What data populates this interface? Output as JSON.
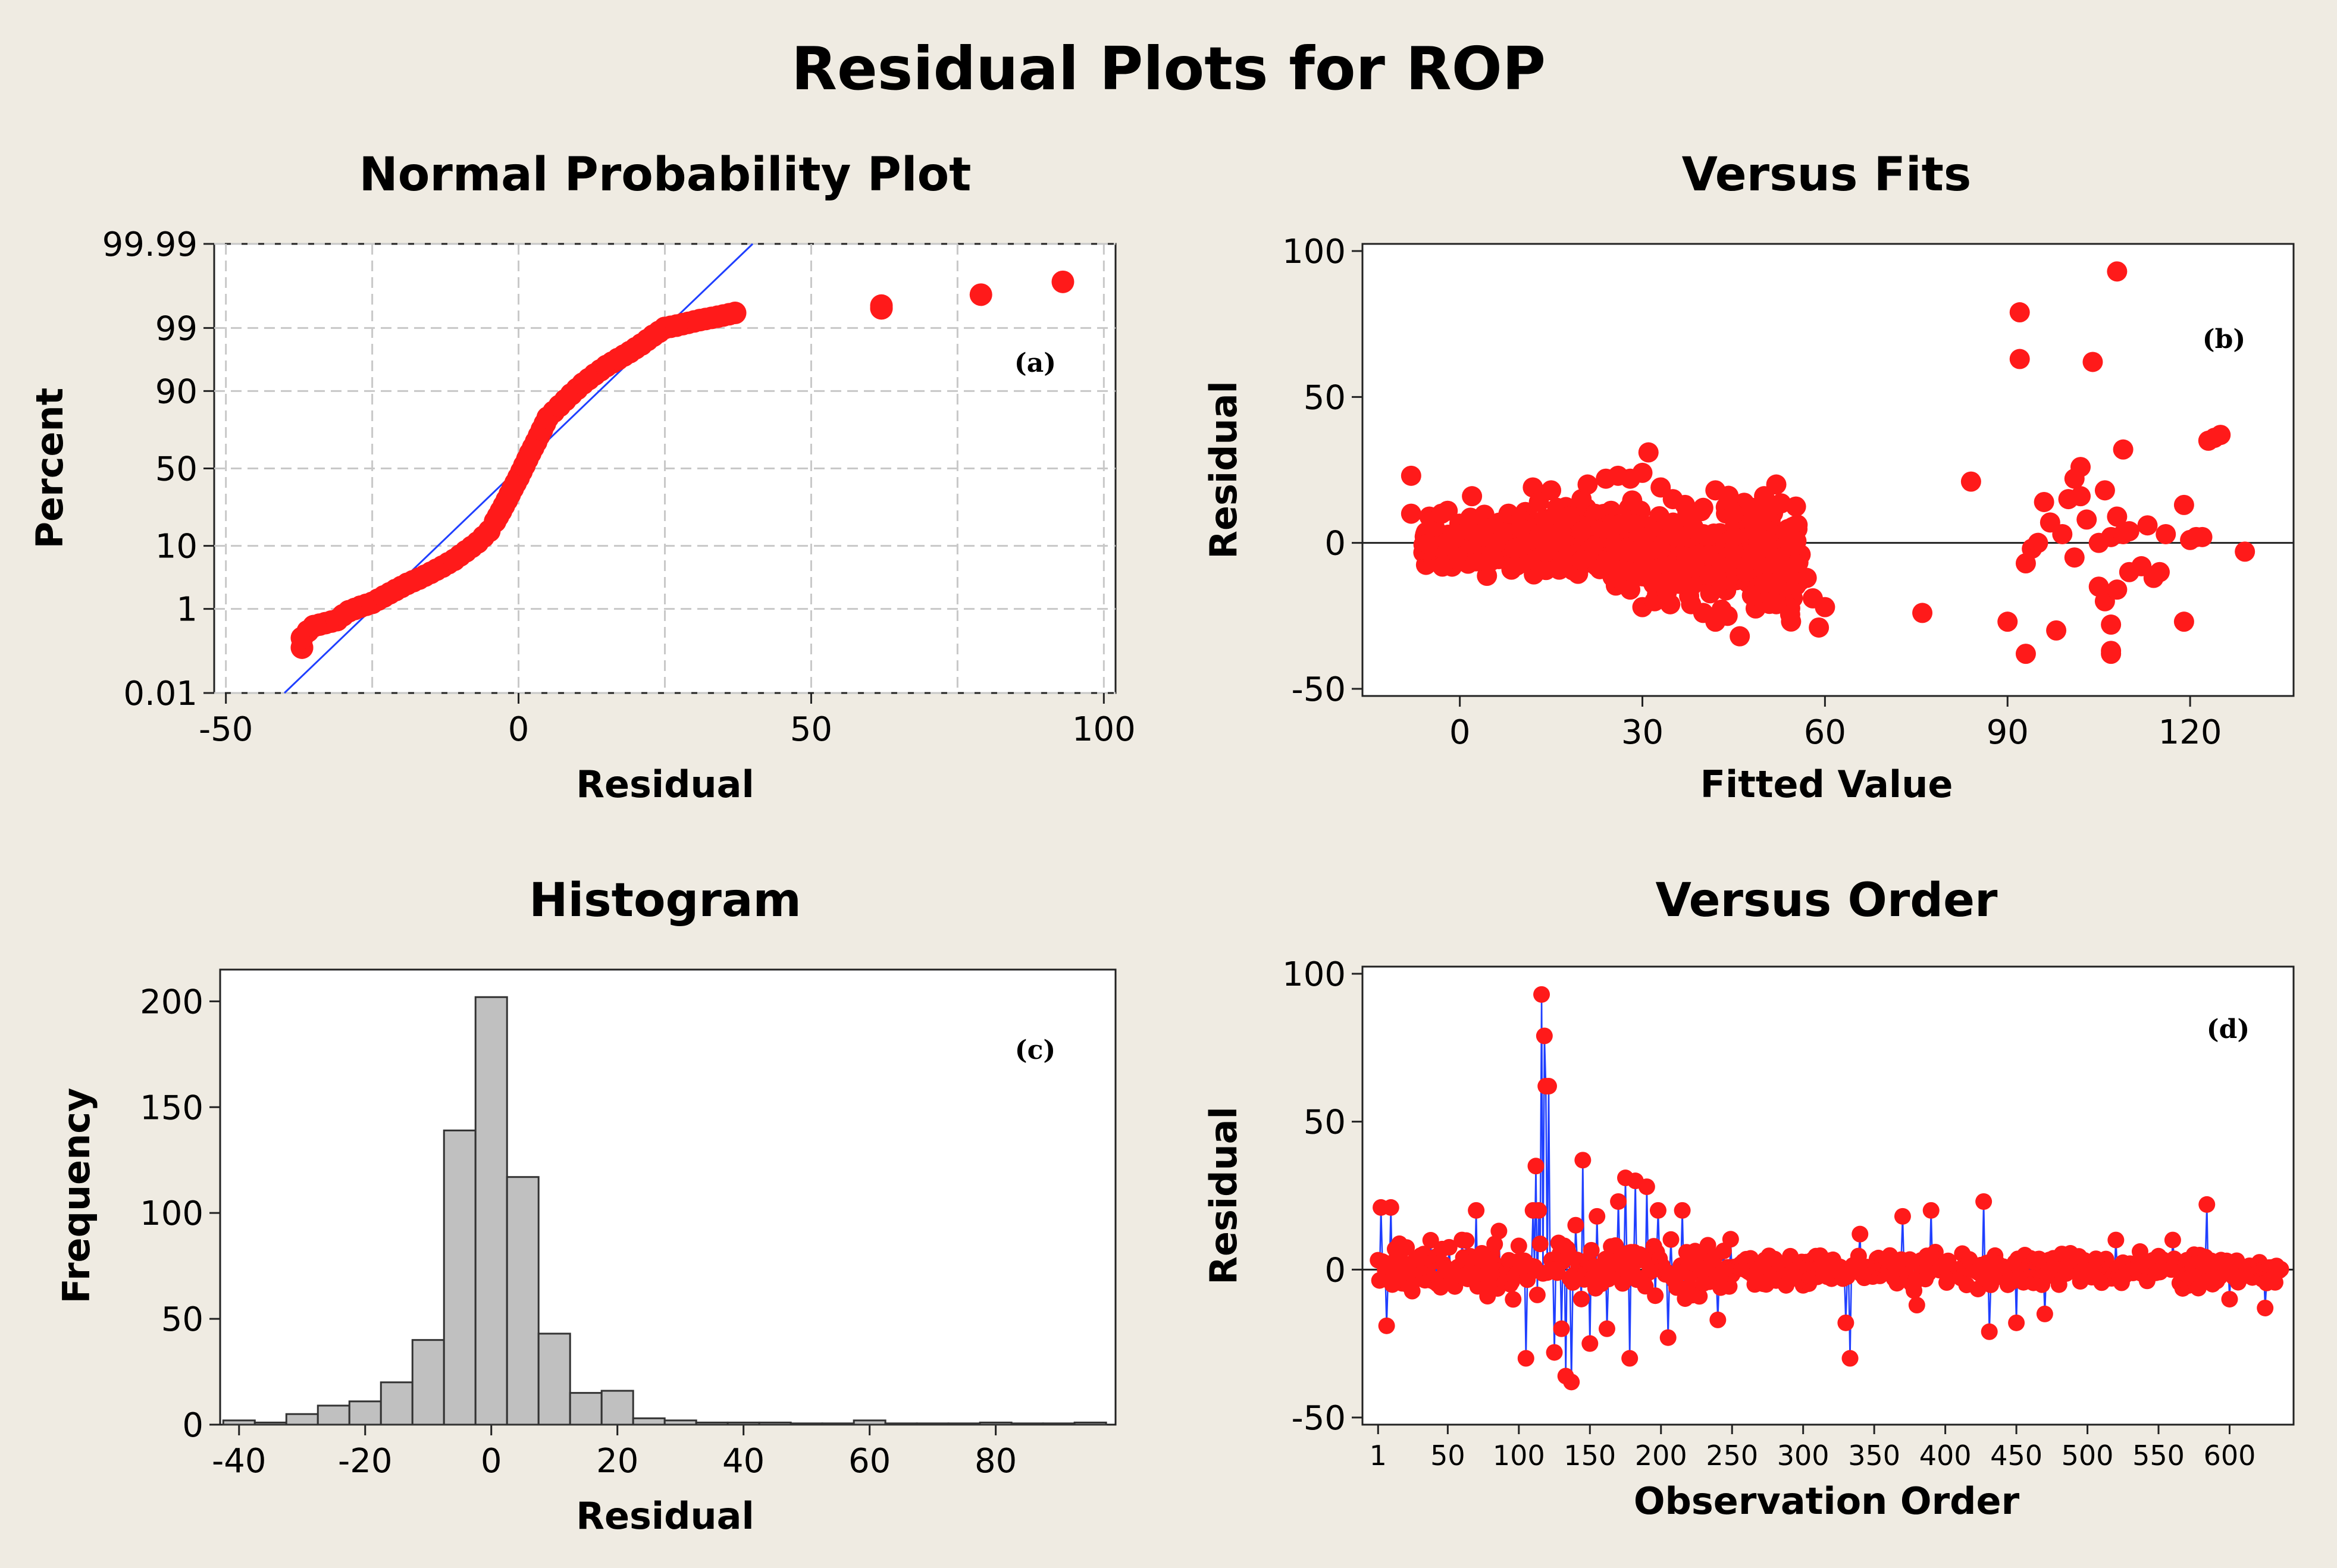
{
  "figure_title": "Residual Plots for ROP",
  "colors": {
    "marker": "#ff1a1a",
    "fit_line": "#1f3fff",
    "bar_fill": "#c0c0c0",
    "background": "#efebe2"
  },
  "chart_data": [
    {
      "id": "normal_probability_plot",
      "type": "scatter",
      "title": "Normal Probability Plot",
      "annotation": "(a)",
      "xlabel": "Residual",
      "ylabel": "Percent",
      "xlim": [
        -52,
        102
      ],
      "x_ticks": [
        -50,
        0,
        50,
        100
      ],
      "y_ticks": [
        "99.99",
        "99",
        "90",
        "50",
        "10",
        "1",
        "0.01"
      ],
      "y_tick_percent": [
        99.99,
        99,
        90,
        50,
        10,
        1,
        0.01
      ],
      "grid": true,
      "fit_line": {
        "from": {
          "x": -40,
          "percent": 0.01
        },
        "to": {
          "x": 40,
          "percent": 99.99
        }
      },
      "points": [
        {
          "x": -37,
          "percent": 0.15
        },
        {
          "x": -37,
          "percent": 0.25
        },
        {
          "x": -36,
          "percent": 0.35
        },
        {
          "x": -35,
          "percent": 0.45
        },
        {
          "x": -31,
          "percent": 0.6
        },
        {
          "x": -30,
          "percent": 0.75
        },
        {
          "x": -29,
          "percent": 0.9
        },
        {
          "x": -27,
          "percent": 1.1
        },
        {
          "x": -25,
          "percent": 1.3
        },
        {
          "x": -23,
          "percent": 1.7
        },
        {
          "x": -21,
          "percent": 2.2
        },
        {
          "x": -19,
          "percent": 2.8
        },
        {
          "x": -17,
          "percent": 3.4
        },
        {
          "x": -15,
          "percent": 4.2
        },
        {
          "x": -13,
          "percent": 5.2
        },
        {
          "x": -11,
          "percent": 6.5
        },
        {
          "x": -9,
          "percent": 8.5
        },
        {
          "x": -7,
          "percent": 11
        },
        {
          "x": -5,
          "percent": 15
        },
        {
          "x": -4,
          "percent": 19
        },
        {
          "x": -3,
          "percent": 24
        },
        {
          "x": -2,
          "percent": 30
        },
        {
          "x": -1,
          "percent": 37
        },
        {
          "x": 0,
          "percent": 44
        },
        {
          "x": 1,
          "percent": 52
        },
        {
          "x": 2,
          "percent": 60
        },
        {
          "x": 3,
          "percent": 67
        },
        {
          "x": 4,
          "percent": 74
        },
        {
          "x": 5,
          "percent": 80
        },
        {
          "x": 7,
          "percent": 85
        },
        {
          "x": 9,
          "percent": 89
        },
        {
          "x": 11,
          "percent": 92
        },
        {
          "x": 13,
          "percent": 94
        },
        {
          "x": 15,
          "percent": 95.5
        },
        {
          "x": 17,
          "percent": 96.5
        },
        {
          "x": 19,
          "percent": 97.3
        },
        {
          "x": 21,
          "percent": 98
        },
        {
          "x": 23,
          "percent": 98.6
        },
        {
          "x": 25,
          "percent": 99
        },
        {
          "x": 27,
          "percent": 99.1
        },
        {
          "x": 31,
          "percent": 99.3
        },
        {
          "x": 34,
          "percent": 99.4
        },
        {
          "x": 37,
          "percent": 99.5
        },
        {
          "x": 62,
          "percent": 99.6
        },
        {
          "x": 62,
          "percent": 99.65
        },
        {
          "x": 79,
          "percent": 99.8
        },
        {
          "x": 93,
          "percent": 99.9
        }
      ]
    },
    {
      "id": "versus_fits",
      "type": "scatter",
      "title": "Versus Fits",
      "annotation": "(b)",
      "xlabel": "Fitted Value",
      "ylabel": "Residual",
      "xlim": [
        -16,
        137
      ],
      "ylim": [
        -50,
        100
      ],
      "x_ticks": [
        0,
        30,
        60,
        90,
        120
      ],
      "y_ticks": [
        -50,
        0,
        50,
        100
      ],
      "reference_line": 0,
      "points": [
        [
          -8,
          23
        ],
        [
          -8,
          10
        ],
        [
          -5,
          9
        ],
        [
          -3,
          10
        ],
        [
          -2,
          11
        ],
        [
          2,
          16
        ],
        [
          5,
          5
        ],
        [
          8,
          10
        ],
        [
          10,
          8
        ],
        [
          12,
          19
        ],
        [
          13,
          14
        ],
        [
          15,
          18
        ],
        [
          16,
          12
        ],
        [
          18,
          9
        ],
        [
          20,
          15
        ],
        [
          21,
          20
        ],
        [
          24,
          22
        ],
        [
          26,
          23
        ],
        [
          28,
          22
        ],
        [
          30,
          24
        ],
        [
          31,
          31
        ],
        [
          33,
          19
        ],
        [
          35,
          15
        ],
        [
          37,
          13
        ],
        [
          40,
          12
        ],
        [
          42,
          18
        ],
        [
          45,
          10
        ],
        [
          48,
          12
        ],
        [
          50,
          16
        ],
        [
          52,
          20
        ],
        [
          3,
          2
        ],
        [
          6,
          0
        ],
        [
          9,
          -2
        ],
        [
          11,
          1
        ],
        [
          14,
          -3
        ],
        [
          17,
          0
        ],
        [
          19,
          -4
        ],
        [
          22,
          -1
        ],
        [
          25,
          -6
        ],
        [
          27,
          -3
        ],
        [
          29,
          -10
        ],
        [
          31,
          -12
        ],
        [
          33,
          -2
        ],
        [
          36,
          -9
        ],
        [
          38,
          -5
        ],
        [
          41,
          -11
        ],
        [
          43,
          -7
        ],
        [
          45,
          -3
        ],
        [
          47,
          -10
        ],
        [
          49,
          -6
        ],
        [
          51,
          -2
        ],
        [
          53,
          -5
        ],
        [
          55,
          -8
        ],
        [
          56,
          -4
        ],
        [
          57,
          -12
        ],
        [
          58,
          -19
        ],
        [
          59,
          -29
        ],
        [
          60,
          -22
        ],
        [
          20,
          -6
        ],
        [
          23,
          -9
        ],
        [
          26,
          -12
        ],
        [
          28,
          -16
        ],
        [
          30,
          -22
        ],
        [
          32,
          -20
        ],
        [
          34,
          -17
        ],
        [
          36,
          -14
        ],
        [
          38,
          -21
        ],
        [
          40,
          -24
        ],
        [
          42,
          -27
        ],
        [
          44,
          -25
        ],
        [
          46,
          -32
        ],
        [
          48,
          -18
        ],
        [
          50,
          -14
        ],
        [
          52,
          -21
        ],
        [
          10,
          5
        ],
        [
          15,
          3
        ],
        [
          20,
          4
        ],
        [
          25,
          6
        ],
        [
          30,
          2
        ],
        [
          35,
          4
        ],
        [
          40,
          3
        ],
        [
          45,
          2
        ],
        [
          50,
          1
        ],
        [
          55,
          -1
        ],
        [
          76,
          -24
        ],
        [
          84,
          21
        ],
        [
          90,
          -27
        ],
        [
          92,
          63
        ],
        [
          92,
          79
        ],
        [
          93,
          -7
        ],
        [
          93,
          -38
        ],
        [
          94,
          -2
        ],
        [
          95,
          0
        ],
        [
          96,
          14
        ],
        [
          97,
          7
        ],
        [
          98,
          -30
        ],
        [
          99,
          3
        ],
        [
          100,
          15
        ],
        [
          101,
          22
        ],
        [
          101,
          -5
        ],
        [
          102,
          26
        ],
        [
          102,
          16
        ],
        [
          103,
          8
        ],
        [
          104,
          62
        ],
        [
          105,
          -15
        ],
        [
          105,
          0
        ],
        [
          106,
          18
        ],
        [
          106,
          -20
        ],
        [
          107,
          -28
        ],
        [
          107,
          -37
        ],
        [
          107,
          -38
        ],
        [
          107,
          2
        ],
        [
          108,
          93
        ],
        [
          108,
          -16
        ],
        [
          108,
          9
        ],
        [
          109,
          32
        ],
        [
          109,
          3
        ],
        [
          110,
          4
        ],
        [
          110,
          -10
        ],
        [
          112,
          -8
        ],
        [
          113,
          6
        ],
        [
          114,
          -12
        ],
        [
          115,
          -10
        ],
        [
          116,
          3
        ],
        [
          119,
          13
        ],
        [
          119,
          -27
        ],
        [
          120,
          1
        ],
        [
          121,
          2
        ],
        [
          122,
          2
        ],
        [
          123,
          35
        ],
        [
          124,
          36
        ],
        [
          125,
          37
        ],
        [
          129,
          -3
        ]
      ]
    },
    {
      "id": "histogram",
      "type": "bar",
      "title": "Histogram",
      "annotation": "(c)",
      "xlabel": "Residual",
      "ylabel": "Frequency",
      "xlim": [
        -43,
        99
      ],
      "ylim": [
        0,
        215
      ],
      "x_ticks": [
        -40,
        -20,
        0,
        20,
        40,
        60,
        80
      ],
      "y_ticks": [
        0,
        50,
        100,
        150,
        200
      ],
      "bin_width": 5,
      "bin_starts": [
        -42.5,
        -37.5,
        -32.5,
        -27.5,
        -22.5,
        -17.5,
        -12.5,
        -7.5,
        -2.5,
        2.5,
        7.5,
        12.5,
        17.5,
        22.5,
        27.5,
        32.5,
        37.5,
        42.5,
        47.5,
        52.5,
        57.5,
        62.5,
        67.5,
        72.5,
        77.5,
        82.5,
        87.5,
        92.5
      ],
      "values": [
        2,
        1,
        5,
        9,
        11,
        20,
        40,
        139,
        202,
        117,
        43,
        15,
        16,
        3,
        2,
        1,
        1,
        1,
        0,
        0,
        2,
        0,
        0,
        0,
        1,
        0,
        0,
        1
      ]
    },
    {
      "id": "versus_order",
      "type": "line",
      "title": "Versus Order",
      "annotation": "(d)",
      "xlabel": "Observation Order",
      "ylabel": "Residual",
      "xlim": [
        -10,
        645
      ],
      "ylim": [
        -50,
        100
      ],
      "x_ticks": [
        1,
        50,
        100,
        150,
        200,
        250,
        300,
        350,
        400,
        450,
        500,
        550,
        600
      ],
      "y_ticks": [
        -50,
        0,
        50,
        100
      ],
      "reference_line": 0,
      "series_count": 636,
      "spikes": [
        [
          3,
          21
        ],
        [
          7,
          -19
        ],
        [
          10,
          21
        ],
        [
          15,
          6
        ],
        [
          60,
          10
        ],
        [
          70,
          20
        ],
        [
          100,
          8
        ],
        [
          105,
          -30
        ],
        [
          110,
          20
        ],
        [
          112,
          35
        ],
        [
          114,
          20
        ],
        [
          116,
          93
        ],
        [
          118,
          79
        ],
        [
          119,
          62
        ],
        [
          121,
          62
        ],
        [
          125,
          -28
        ],
        [
          130,
          -20
        ],
        [
          133,
          -36
        ],
        [
          137,
          -38
        ],
        [
          140,
          15
        ],
        [
          145,
          37
        ],
        [
          150,
          -25
        ],
        [
          155,
          18
        ],
        [
          162,
          -20
        ],
        [
          170,
          23
        ],
        [
          175,
          31
        ],
        [
          178,
          -30
        ],
        [
          182,
          30
        ],
        [
          190,
          28
        ],
        [
          198,
          20
        ],
        [
          205,
          -23
        ],
        [
          215,
          20
        ],
        [
          240,
          -17
        ],
        [
          330,
          -18
        ],
        [
          333,
          -30
        ],
        [
          340,
          12
        ],
        [
          370,
          18
        ],
        [
          380,
          -12
        ],
        [
          390,
          20
        ],
        [
          427,
          23
        ],
        [
          431,
          -21
        ],
        [
          450,
          -18
        ],
        [
          470,
          -15
        ],
        [
          520,
          10
        ],
        [
          560,
          10
        ],
        [
          584,
          22
        ],
        [
          600,
          -10
        ],
        [
          625,
          -13
        ]
      ]
    }
  ]
}
